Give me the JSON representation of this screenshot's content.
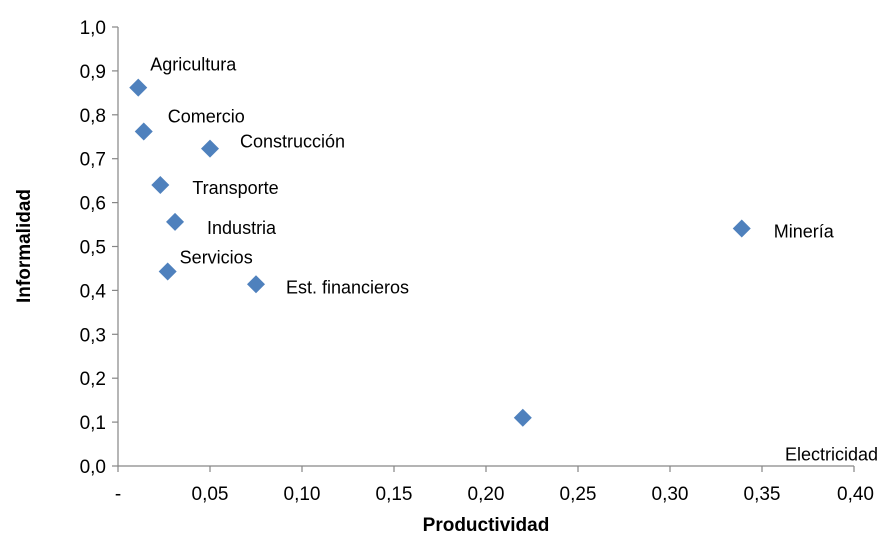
{
  "chart_data": {
    "type": "scatter",
    "xlabel": "Productividad",
    "ylabel": "Informalidad",
    "xlim": [
      0,
      0.4
    ],
    "ylim": [
      0,
      1.0
    ],
    "x_ticks": [
      "-",
      "0,05",
      "0,10",
      "0,15",
      "0,20",
      "0,25",
      "0,30",
      "0,35",
      "0,40"
    ],
    "y_ticks": [
      "0,0",
      "0,1",
      "0,2",
      "0,3",
      "0,4",
      "0,5",
      "0,6",
      "0,7",
      "0,8",
      "0,9",
      "1,0"
    ],
    "grid": false,
    "legend": "none",
    "marker_color": "#4F81BD",
    "points": [
      {
        "label": "Agricultura",
        "x": 0.011,
        "y": 0.862
      },
      {
        "label": "Comercio",
        "x": 0.014,
        "y": 0.762
      },
      {
        "label": "Construcción",
        "x": 0.05,
        "y": 0.723
      },
      {
        "label": "Transporte",
        "x": 0.023,
        "y": 0.64
      },
      {
        "label": "Industria",
        "x": 0.031,
        "y": 0.556
      },
      {
        "label": "Servicios",
        "x": 0.027,
        "y": 0.443
      },
      {
        "label": "Est. financieros",
        "x": 0.075,
        "y": 0.414
      },
      {
        "label": "Minería",
        "x": 0.339,
        "y": 0.541
      },
      {
        "label": "Electricidad",
        "x": 0.22,
        "y": 0.11
      }
    ]
  }
}
